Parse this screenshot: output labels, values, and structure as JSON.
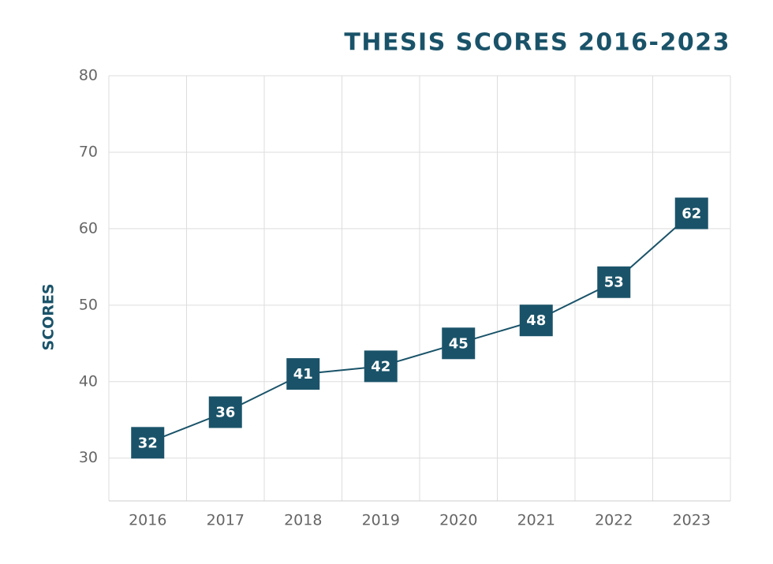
{
  "chart_data": {
    "type": "line",
    "title": "THESIS SCORES 2016-2023",
    "y_label": "SCORES",
    "categories": [
      "2016",
      "2017",
      "2018",
      "2019",
      "2020",
      "2021",
      "2022",
      "2023"
    ],
    "values": [
      32,
      36,
      41,
      42,
      45,
      48,
      53,
      62
    ],
    "color": "#1a5369",
    "ylim": [
      24.4,
      80
    ],
    "yticks": [
      30,
      40,
      50,
      60,
      70,
      80
    ],
    "grid": true
  }
}
